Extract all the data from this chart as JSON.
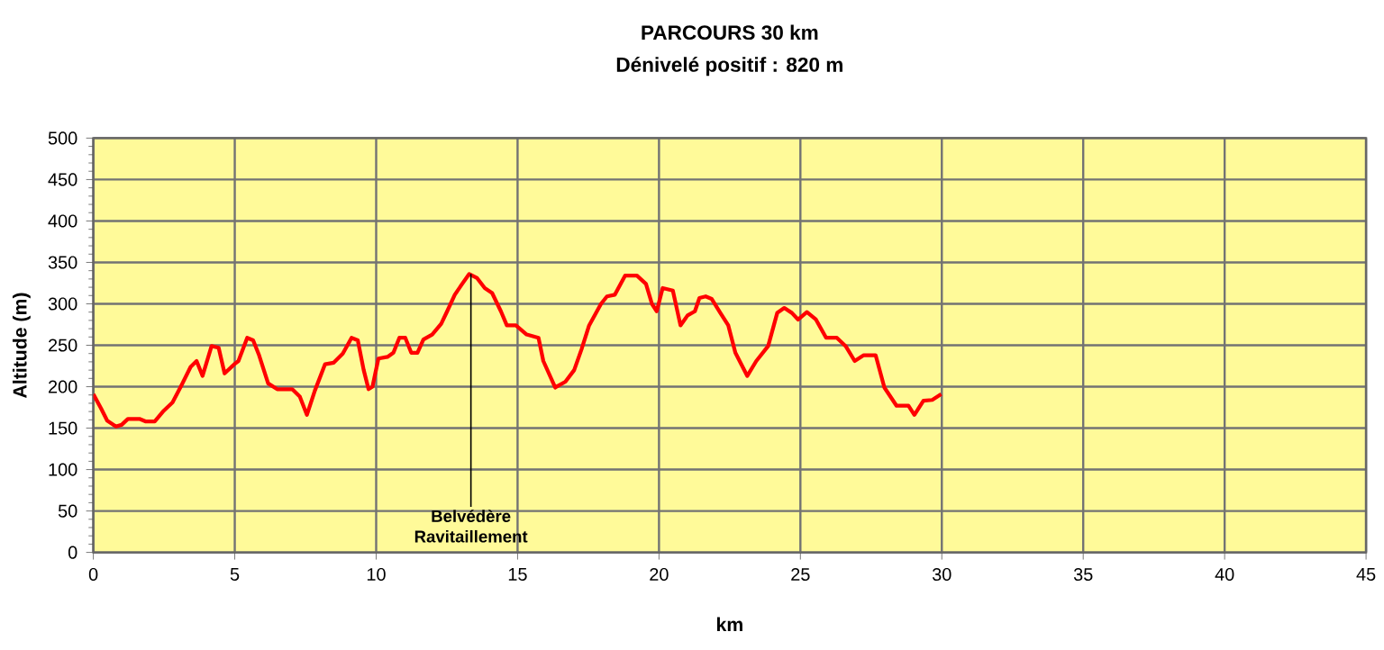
{
  "chart_data": {
    "type": "line",
    "title": "PARCOURS 30 km",
    "subtitle": "Dénivelé positif  : 820 m",
    "xlabel": "km",
    "ylabel": "Altitude (m)",
    "xlim": [
      0,
      45
    ],
    "xticks": [
      0,
      5,
      10,
      15,
      20,
      25,
      30,
      35,
      40,
      45
    ],
    "ylim": [
      0,
      500
    ],
    "yticks": [
      0,
      50,
      100,
      150,
      200,
      250,
      300,
      350,
      400,
      450,
      500
    ],
    "grid": true,
    "legend": false,
    "marker": "none",
    "line_style": "solid",
    "annotations": [
      {
        "text": "Belvédère Ravitaillement",
        "x": 13.35,
        "y": 336
      }
    ],
    "series": [
      {
        "color": "#ff0000",
        "x": [
          0,
          0.27,
          0.49,
          0.8,
          1.0,
          1.22,
          1.65,
          1.86,
          2.17,
          2.49,
          2.8,
          3.12,
          3.44,
          3.65,
          3.86,
          4.18,
          4.43,
          4.64,
          4.98,
          5.13,
          5.44,
          5.65,
          5.86,
          6.18,
          6.5,
          7.03,
          7.3,
          7.55,
          7.83,
          8.19,
          8.5,
          8.82,
          9.13,
          9.35,
          9.56,
          9.73,
          9.87,
          10.08,
          10.4,
          10.61,
          10.82,
          11.03,
          11.24,
          11.46,
          11.67,
          11.98,
          12.3,
          12.51,
          12.78,
          13.04,
          13.29,
          13.57,
          13.84,
          14.1,
          14.41,
          14.62,
          14.94,
          15.32,
          15.74,
          15.91,
          16.33,
          16.69,
          17.0,
          17.26,
          17.53,
          17.95,
          18.16,
          18.44,
          18.8,
          19.22,
          19.54,
          19.75,
          19.92,
          20.13,
          20.49,
          20.76,
          21.01,
          21.27,
          21.43,
          21.65,
          21.86,
          22.17,
          22.45,
          22.7,
          23.12,
          23.44,
          23.86,
          24.18,
          24.43,
          24.7,
          24.92,
          25.23,
          25.55,
          25.91,
          26.29,
          26.6,
          26.92,
          27.24,
          27.66,
          27.97,
          28.4,
          28.82,
          29.03,
          29.35,
          29.66,
          29.98
        ],
        "values": [
          191,
          174,
          159,
          152,
          154,
          161,
          161,
          158,
          158,
          171,
          181,
          202,
          224,
          231,
          213,
          249,
          247,
          216,
          227,
          231,
          259,
          256,
          238,
          204,
          197,
          197,
          188,
          166,
          195,
          227,
          229,
          240,
          259,
          256,
          220,
          197,
          200,
          234,
          236,
          241,
          259,
          259,
          241,
          241,
          257,
          263,
          276,
          291,
          311,
          324,
          336,
          331,
          319,
          313,
          291,
          274,
          274,
          263,
          259,
          231,
          199,
          206,
          220,
          245,
          274,
          300,
          309,
          311,
          334,
          334,
          324,
          300,
          291,
          319,
          316,
          274,
          286,
          291,
          307,
          309,
          306,
          289,
          274,
          241,
          213,
          231,
          249,
          289,
          295,
          289,
          281,
          290,
          281,
          259,
          259,
          249,
          231,
          238,
          238,
          199,
          177,
          177,
          166,
          183,
          184,
          191
        ]
      }
    ]
  }
}
